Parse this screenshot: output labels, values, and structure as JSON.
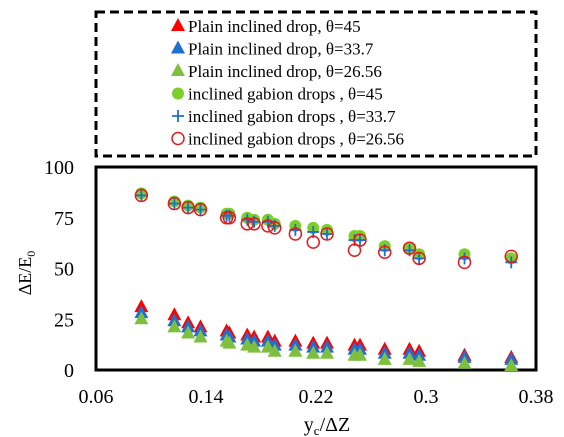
{
  "chart_data": {
    "type": "scatter",
    "xlabel": "yc/ΔZ",
    "xlabel_main": "y",
    "xlabel_sub": "c",
    "xlabel_rest": "/ΔZ",
    "ylabel": "ΔE/E0",
    "ylabel_main": "ΔE/E",
    "ylabel_sub": "0",
    "xlim": [
      0.06,
      0.38
    ],
    "ylim": [
      0,
      100
    ],
    "xticks": [
      "0.06",
      "0.14",
      "0.22",
      "0.3",
      "0.38"
    ],
    "xtick_values": [
      0.06,
      0.14,
      0.22,
      0.3,
      0.38
    ],
    "yticks": [
      "0",
      "25",
      "50",
      "75",
      "100"
    ],
    "ytick_values": [
      0,
      25,
      50,
      75,
      100
    ],
    "grid": false,
    "legend_placement": "top",
    "x": [
      0.093,
      0.117,
      0.127,
      0.136,
      0.155,
      0.157,
      0.17,
      0.175,
      0.185,
      0.19,
      0.205,
      0.218,
      0.228,
      0.248,
      0.252,
      0.27,
      0.288,
      0.295,
      0.328,
      0.362
    ],
    "series": [
      {
        "name": "Plain inclined drop, θ=45",
        "marker": "triangle",
        "color": "#ff0000",
        "values": [
          31,
          27,
          23,
          21,
          19,
          18,
          17,
          16,
          16,
          14,
          14,
          13,
          13,
          12,
          12,
          10,
          10,
          9,
          7,
          6
        ]
      },
      {
        "name": "Plain inclined drop, θ=33.7",
        "marker": "triangle",
        "color": "#1f6fd0",
        "values": [
          28,
          24,
          21,
          19,
          17,
          16,
          15,
          14,
          14,
          12,
          12,
          11,
          11,
          10,
          10,
          8,
          8,
          7,
          6,
          5
        ]
      },
      {
        "name": "Plain inclined drop, θ=26.56",
        "marker": "triangle",
        "color": "#7fbf3f",
        "values": [
          25,
          21,
          18,
          16,
          14,
          13,
          12,
          11,
          11,
          9,
          9,
          8,
          8,
          7,
          7,
          5,
          5,
          4,
          3,
          2
        ]
      },
      {
        "name": "inclined gabion drops , θ=45",
        "marker": "filled-circle",
        "color": "#7ccf29",
        "values": [
          87,
          83,
          81,
          80,
          77,
          77,
          75,
          74,
          74,
          72,
          71,
          70,
          69,
          66,
          66,
          61,
          60,
          57,
          57,
          55
        ]
      },
      {
        "name": "inclined gabion drops , θ=33.7",
        "marker": "plus",
        "color": "#1f6fd0",
        "values": [
          86,
          82,
          80,
          79,
          76,
          76,
          74,
          73,
          73,
          71,
          69,
          68,
          67,
          64,
          64,
          59,
          59,
          55,
          55,
          53
        ]
      },
      {
        "name": "inclined gabion drops , θ=26.56",
        "marker": "open-circle",
        "color": "#e41a1c",
        "values": [
          86,
          82,
          80,
          79,
          75,
          75,
          72,
          72,
          71,
          70,
          67,
          63,
          67,
          59,
          64,
          58,
          60,
          55,
          53,
          56
        ]
      }
    ]
  }
}
